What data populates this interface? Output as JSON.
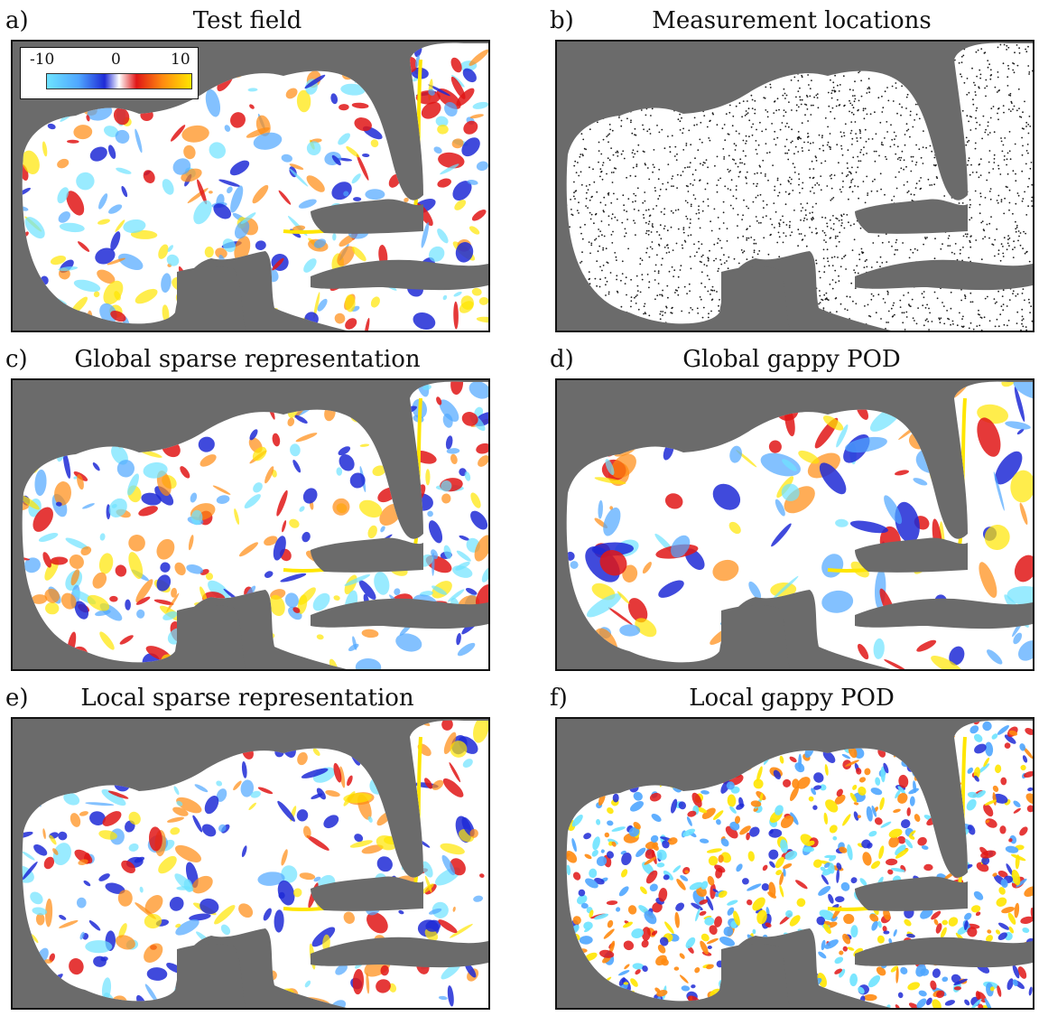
{
  "panels": [
    {
      "letter": "a)",
      "title": "Test field",
      "kind": "field"
    },
    {
      "letter": "b)",
      "title": "Measurement locations",
      "kind": "points"
    },
    {
      "letter": "c)",
      "title": "Global sparse representation",
      "kind": "field"
    },
    {
      "letter": "d)",
      "title": "Global gappy POD",
      "kind": "field"
    },
    {
      "letter": "e)",
      "title": "Local sparse representation",
      "kind": "field"
    },
    {
      "letter": "f)",
      "title": "Local gappy POD",
      "kind": "field"
    }
  ],
  "colorbar": {
    "min_label": "-10",
    "mid_label": "0",
    "max_label": "10"
  },
  "colors": {
    "land": "#6b6b6b",
    "ocean": "#ffffff",
    "negative": [
      "#1e2ad6",
      "#4fa6ff",
      "#6de3ff"
    ],
    "positive": [
      "#e01616",
      "#ff8a10",
      "#ffe600"
    ],
    "points": "#1a1a1a"
  }
}
